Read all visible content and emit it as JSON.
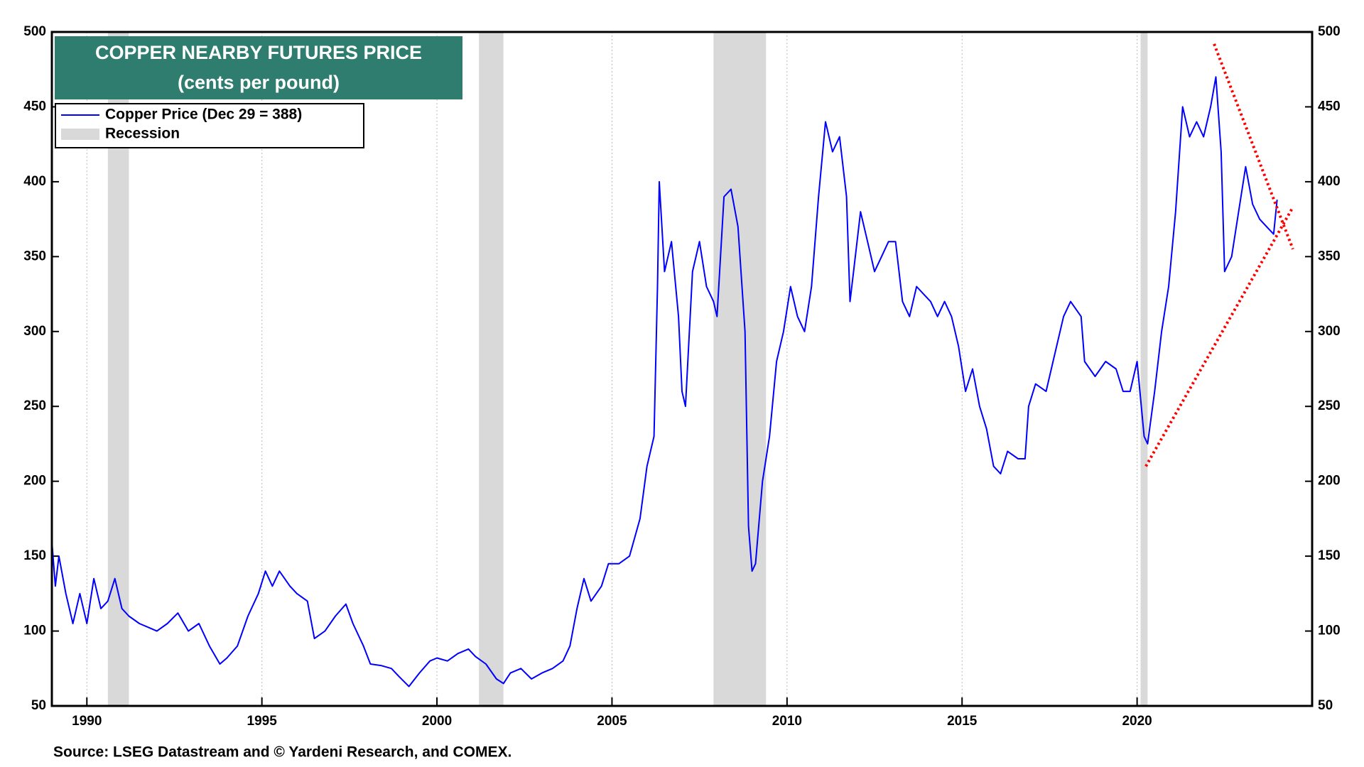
{
  "chart_data": {
    "type": "line",
    "title": "COPPER NEARBY FUTURES PRICE",
    "subtitle": "(cents per pound)",
    "source": "Source: LSEG Datastream and © Yardeni Research, and COMEX.",
    "legend_recession": "Recession",
    "recession_color": "#d9d9d9",
    "title_box_color": "#2e7d6e",
    "xlim": [
      1989,
      2025
    ],
    "xticks": [
      1990,
      1995,
      2000,
      2005,
      2010,
      2015,
      2020
    ],
    "ylim": [
      50,
      500
    ],
    "yticks": [
      50,
      100,
      150,
      200,
      250,
      300,
      350,
      400,
      450,
      500
    ],
    "y2lim": [
      50,
      500
    ],
    "y2ticks": [
      50,
      100,
      150,
      200,
      250,
      300,
      350,
      400,
      450,
      500
    ],
    "grid": true,
    "recessions": [
      [
        1990.6,
        1991.2
      ],
      [
        2001.2,
        2001.9
      ],
      [
        2007.9,
        2009.4
      ],
      [
        2020.1,
        2020.3
      ]
    ],
    "trend_lines": [
      {
        "color": "#ff0000",
        "x": [
          2022.2,
          2024.45
        ],
        "y": [
          492,
          355
        ]
      },
      {
        "color": "#ff0000",
        "x": [
          2020.25,
          2024.45
        ],
        "y": [
          210,
          383
        ]
      }
    ],
    "x": [
      1989.0,
      1989.1,
      1989.2,
      1989.4,
      1989.6,
      1989.8,
      1990.0,
      1990.2,
      1990.4,
      1990.6,
      1990.8,
      1991.0,
      1991.2,
      1991.5,
      1991.8,
      1992.0,
      1992.3,
      1992.6,
      1992.9,
      1993.2,
      1993.5,
      1993.8,
      1994.0,
      1994.3,
      1994.6,
      1994.9,
      1995.1,
      1995.3,
      1995.5,
      1995.8,
      1996.0,
      1996.3,
      1996.5,
      1996.8,
      1997.1,
      1997.4,
      1997.6,
      1997.9,
      1998.1,
      1998.4,
      1998.7,
      1998.9,
      1999.2,
      1999.5,
      1999.8,
      2000.0,
      2000.3,
      2000.6,
      2000.9,
      2001.1,
      2001.4,
      2001.7,
      2001.9,
      2002.1,
      2002.4,
      2002.7,
      2003.0,
      2003.3,
      2003.6,
      2003.8,
      2004.0,
      2004.2,
      2004.4,
      2004.7,
      2004.9,
      2005.2,
      2005.5,
      2005.8,
      2006.0,
      2006.2,
      2006.3,
      2006.35,
      2006.5,
      2006.7,
      2006.9,
      2007.0,
      2007.1,
      2007.3,
      2007.5,
      2007.7,
      2007.9,
      2008.0,
      2008.2,
      2008.4,
      2008.6,
      2008.8,
      2008.9,
      2009.0,
      2009.1,
      2009.3,
      2009.5,
      2009.7,
      2009.9,
      2010.1,
      2010.3,
      2010.5,
      2010.7,
      2010.9,
      2011.1,
      2011.3,
      2011.5,
      2011.7,
      2011.8,
      2011.9,
      2012.1,
      2012.3,
      2012.5,
      2012.7,
      2012.9,
      2013.1,
      2013.3,
      2013.5,
      2013.7,
      2013.9,
      2014.1,
      2014.3,
      2014.5,
      2014.7,
      2014.9,
      2015.1,
      2015.3,
      2015.5,
      2015.7,
      2015.9,
      2016.1,
      2016.3,
      2016.6,
      2016.8,
      2016.9,
      2017.1,
      2017.4,
      2017.6,
      2017.9,
      2018.1,
      2018.4,
      2018.5,
      2018.8,
      2019.1,
      2019.4,
      2019.6,
      2019.8,
      2020.0,
      2020.2,
      2020.3,
      2020.5,
      2020.7,
      2020.9,
      2021.1,
      2021.3,
      2021.5,
      2021.7,
      2021.9,
      2022.1,
      2022.25,
      2022.4,
      2022.5,
      2022.7,
      2022.9,
      2023.1,
      2023.3,
      2023.5,
      2023.7,
      2023.9,
      2024.0
    ],
    "series": [
      {
        "name": "Copper Price (Dec 29 = 388)",
        "color": "#0000ff",
        "values": [
          160,
          130,
          150,
          125,
          105,
          125,
          105,
          135,
          115,
          120,
          135,
          115,
          110,
          105,
          102,
          100,
          105,
          112,
          100,
          105,
          90,
          78,
          82,
          90,
          110,
          125,
          140,
          130,
          140,
          130,
          125,
          120,
          95,
          100,
          110,
          118,
          105,
          90,
          78,
          77,
          75,
          70,
          63,
          72,
          80,
          82,
          80,
          85,
          88,
          83,
          78,
          68,
          65,
          72,
          75,
          68,
          72,
          75,
          80,
          90,
          115,
          135,
          120,
          130,
          145,
          145,
          150,
          175,
          210,
          230,
          330,
          400,
          340,
          360,
          310,
          260,
          250,
          340,
          360,
          330,
          320,
          310,
          390,
          395,
          370,
          300,
          170,
          140,
          145,
          200,
          230,
          280,
          300,
          330,
          310,
          300,
          330,
          390,
          440,
          420,
          430,
          390,
          320,
          340,
          380,
          360,
          340,
          350,
          360,
          360,
          320,
          310,
          330,
          325,
          320,
          310,
          320,
          310,
          290,
          260,
          275,
          250,
          235,
          210,
          205,
          220,
          215,
          215,
          250,
          265,
          260,
          280,
          310,
          320,
          310,
          280,
          270,
          280,
          275,
          260,
          260,
          280,
          230,
          225,
          260,
          300,
          330,
          380,
          450,
          430,
          440,
          430,
          450,
          470,
          420,
          340,
          350,
          380,
          410,
          385,
          375,
          370,
          365,
          388
        ]
      }
    ]
  }
}
